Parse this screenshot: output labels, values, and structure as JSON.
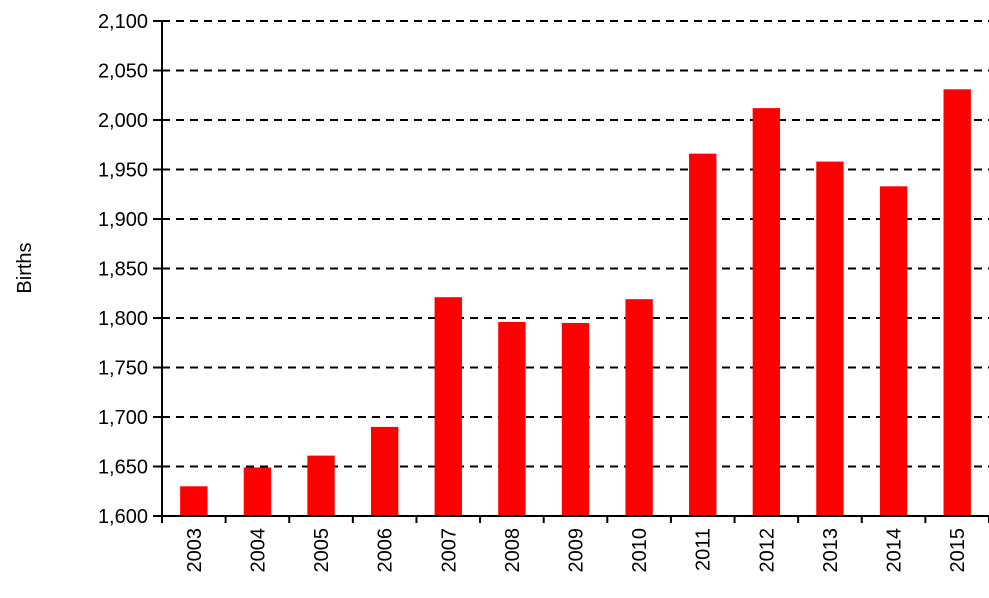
{
  "chart_data": {
    "type": "bar",
    "title": "",
    "xlabel": "",
    "ylabel": "Births",
    "categories": [
      "2003",
      "2004",
      "2005",
      "2006",
      "2007",
      "2008",
      "2009",
      "2010",
      "2011",
      "2012",
      "2013",
      "2014",
      "2015"
    ],
    "values": [
      1630,
      1649,
      1661,
      1690,
      1821,
      1796,
      1795,
      1819,
      1966,
      2012,
      1958,
      1933,
      2031
    ],
    "ylim": [
      1600,
      2100
    ],
    "yticks": [
      1600,
      1650,
      1700,
      1750,
      1800,
      1850,
      1900,
      1950,
      2000,
      2050,
      2100
    ],
    "ytick_labels": [
      "1,600",
      "1,650",
      "1,700",
      "1,750",
      "1,800",
      "1,850",
      "1,900",
      "1,950",
      "2,000",
      "2,050",
      "2,100"
    ],
    "grid": "dashed horizontal",
    "bar_color": "#ff0000"
  }
}
